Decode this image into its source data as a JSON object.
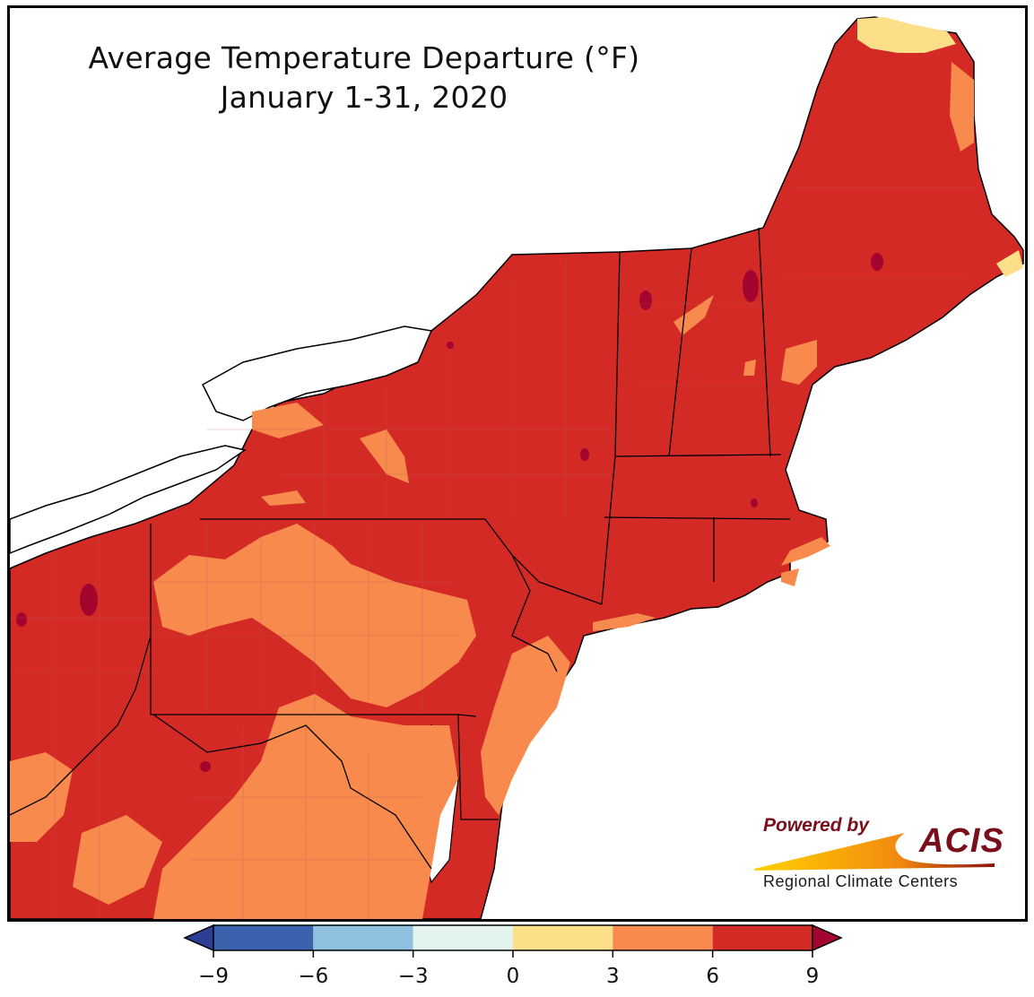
{
  "title": {
    "line1": "Average Temperature Departure (°F)",
    "line2": "January 1-31, 2020"
  },
  "map": {
    "region": "Northeast United States",
    "states": [
      "ME",
      "NH",
      "VT",
      "MA",
      "RI",
      "CT",
      "NY",
      "NJ",
      "PA",
      "DE",
      "MD",
      "WV",
      "VA",
      "OH"
    ],
    "colors": {
      "above_6": "#d42a26",
      "between_3_6": "#f78a4c",
      "between_0_3": "#fddf8a",
      "above_9": "#a3052f",
      "water": "#ffffff",
      "border": "#000000"
    }
  },
  "legend": {
    "ticks": [
      "−9",
      "−6",
      "−3",
      "0",
      "3",
      "6",
      "9"
    ],
    "bins": [
      {
        "range": "below -9",
        "color": "#2c3d94"
      },
      {
        "range": "-9 to -6",
        "color": "#3d62ad"
      },
      {
        "range": "-6 to -3",
        "color": "#8fc1de"
      },
      {
        "range": "-3 to 0",
        "color": "#e3f4ed"
      },
      {
        "range": "0 to 3",
        "color": "#fddf8a"
      },
      {
        "range": "3 to 6",
        "color": "#f78a4c"
      },
      {
        "range": "6 to 9",
        "color": "#d42a26"
      },
      {
        "range": "above 9",
        "color": "#a3052f"
      }
    ]
  },
  "logo": {
    "powered_by": "Powered by",
    "name": "ACIS",
    "subtitle": "Regional Climate Centers"
  }
}
